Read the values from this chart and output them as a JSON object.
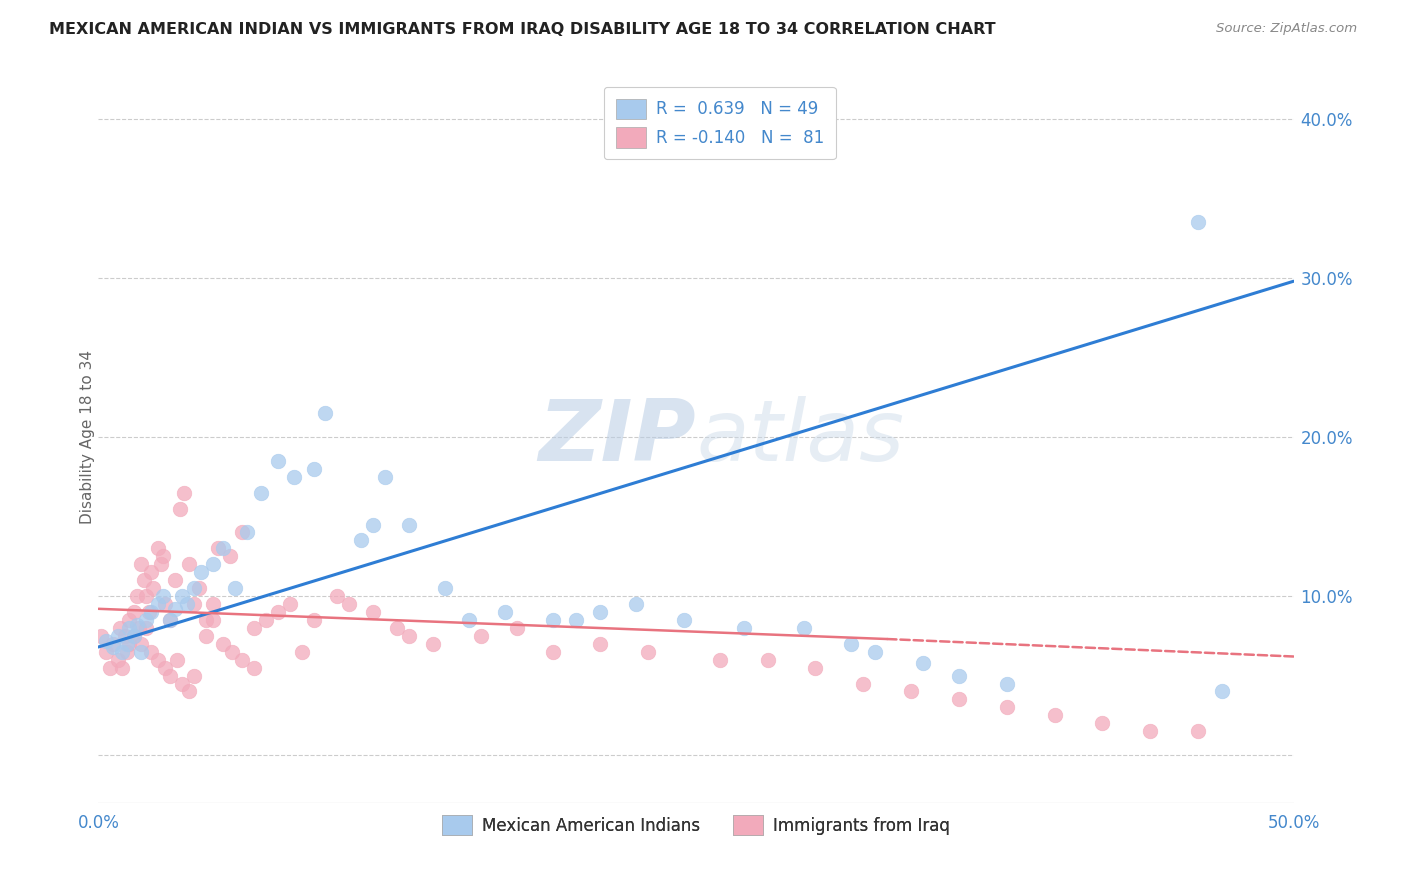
{
  "title": "MEXICAN AMERICAN INDIAN VS IMMIGRANTS FROM IRAQ DISABILITY AGE 18 TO 34 CORRELATION CHART",
  "source": "Source: ZipAtlas.com",
  "ylabel": "Disability Age 18 to 34",
  "xlim": [
    0.0,
    0.5
  ],
  "ylim": [
    -0.03,
    0.43
  ],
  "yticks_right": [
    0.0,
    0.1,
    0.2,
    0.3,
    0.4
  ],
  "yticklabels_right": [
    "",
    "10.0%",
    "20.0%",
    "30.0%",
    "40.0%"
  ],
  "watermark": "ZIPatlas",
  "blue_R": 0.639,
  "blue_N": 49,
  "pink_R": -0.14,
  "pink_N": 81,
  "blue_color": "#A8CAED",
  "pink_color": "#F2AABB",
  "blue_line_color": "#2E7DD4",
  "pink_line_color": "#E8737F",
  "blue_scatter_x": [
    0.003,
    0.006,
    0.008,
    0.01,
    0.012,
    0.013,
    0.015,
    0.016,
    0.018,
    0.02,
    0.022,
    0.025,
    0.027,
    0.03,
    0.032,
    0.035,
    0.037,
    0.04,
    0.043,
    0.048,
    0.052,
    0.057,
    0.062,
    0.068,
    0.075,
    0.082,
    0.09,
    0.095,
    0.11,
    0.115,
    0.12,
    0.13,
    0.145,
    0.155,
    0.17,
    0.19,
    0.2,
    0.21,
    0.225,
    0.245,
    0.27,
    0.295,
    0.315,
    0.325,
    0.345,
    0.36,
    0.38,
    0.46,
    0.47
  ],
  "blue_scatter_y": [
    0.072,
    0.068,
    0.075,
    0.065,
    0.07,
    0.08,
    0.075,
    0.082,
    0.065,
    0.085,
    0.09,
    0.095,
    0.1,
    0.085,
    0.092,
    0.1,
    0.095,
    0.105,
    0.115,
    0.12,
    0.13,
    0.105,
    0.14,
    0.165,
    0.185,
    0.175,
    0.18,
    0.215,
    0.135,
    0.145,
    0.175,
    0.145,
    0.105,
    0.085,
    0.09,
    0.085,
    0.085,
    0.09,
    0.095,
    0.085,
    0.08,
    0.08,
    0.07,
    0.065,
    0.058,
    0.05,
    0.045,
    0.335,
    0.04
  ],
  "pink_scatter_x": [
    0.001,
    0.003,
    0.005,
    0.006,
    0.008,
    0.009,
    0.011,
    0.012,
    0.013,
    0.015,
    0.016,
    0.017,
    0.018,
    0.019,
    0.02,
    0.021,
    0.022,
    0.023,
    0.025,
    0.026,
    0.027,
    0.028,
    0.03,
    0.032,
    0.034,
    0.036,
    0.038,
    0.04,
    0.042,
    0.045,
    0.048,
    0.05,
    0.055,
    0.06,
    0.065,
    0.07,
    0.075,
    0.08,
    0.085,
    0.09,
    0.1,
    0.105,
    0.115,
    0.125,
    0.13,
    0.14,
    0.16,
    0.175,
    0.19,
    0.21,
    0.23,
    0.26,
    0.28,
    0.3,
    0.32,
    0.34,
    0.36,
    0.38,
    0.4,
    0.42,
    0.44,
    0.46,
    0.01,
    0.013,
    0.015,
    0.018,
    0.02,
    0.022,
    0.025,
    0.028,
    0.03,
    0.033,
    0.035,
    0.038,
    0.04,
    0.045,
    0.048,
    0.052,
    0.056,
    0.06,
    0.065
  ],
  "pink_scatter_y": [
    0.075,
    0.065,
    0.055,
    0.07,
    0.06,
    0.08,
    0.075,
    0.065,
    0.085,
    0.09,
    0.1,
    0.08,
    0.12,
    0.11,
    0.1,
    0.09,
    0.115,
    0.105,
    0.13,
    0.12,
    0.125,
    0.095,
    0.085,
    0.11,
    0.155,
    0.165,
    0.12,
    0.095,
    0.105,
    0.085,
    0.095,
    0.13,
    0.125,
    0.14,
    0.08,
    0.085,
    0.09,
    0.095,
    0.065,
    0.085,
    0.1,
    0.095,
    0.09,
    0.08,
    0.075,
    0.07,
    0.075,
    0.08,
    0.065,
    0.07,
    0.065,
    0.06,
    0.06,
    0.055,
    0.045,
    0.04,
    0.035,
    0.03,
    0.025,
    0.02,
    0.015,
    0.015,
    0.055,
    0.07,
    0.075,
    0.07,
    0.08,
    0.065,
    0.06,
    0.055,
    0.05,
    0.06,
    0.045,
    0.04,
    0.05,
    0.075,
    0.085,
    0.07,
    0.065,
    0.06,
    0.055
  ],
  "blue_line_x0": 0.0,
  "blue_line_x1": 0.5,
  "blue_line_y0": 0.068,
  "blue_line_y1": 0.298,
  "pink_line_solid_x0": 0.0,
  "pink_line_solid_x1": 0.33,
  "pink_line_solid_y0": 0.092,
  "pink_line_solid_y1": 0.073,
  "pink_line_dash_x0": 0.33,
  "pink_line_dash_x1": 0.5,
  "pink_line_dash_y0": 0.073,
  "pink_line_dash_y1": 0.062,
  "background_color": "#FFFFFF",
  "grid_color": "#CCCCCC",
  "axis_color": "#888888",
  "tick_label_color": "#4488CC",
  "bottom_tick_color": "#4488CC"
}
